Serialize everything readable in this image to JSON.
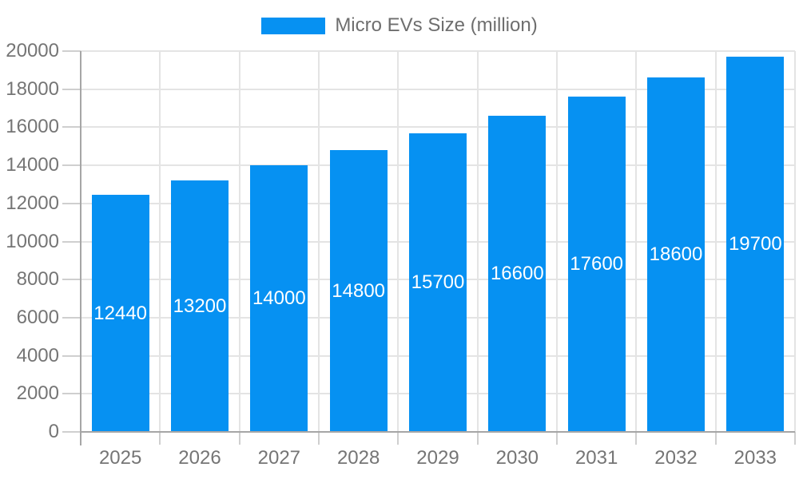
{
  "legend": {
    "label": "Micro EVs Size (million)"
  },
  "colors": {
    "bar": "#0691f2",
    "grid": "#e4e4e4",
    "axis": "#a6a6a6",
    "tick": "#cfcfcf",
    "axis_text": "#757575",
    "legend_text": "#6e6e6e",
    "bar_label_text": "#ffffff"
  },
  "chart_data": {
    "type": "bar",
    "title": "Micro EVs Size (million)",
    "categories": [
      "2025",
      "2026",
      "2027",
      "2028",
      "2029",
      "2030",
      "2031",
      "2032",
      "2033"
    ],
    "series": [
      {
        "name": "Micro EVs Size (million)",
        "values": [
          12440,
          13200,
          14000,
          14800,
          15700,
          16600,
          17600,
          18600,
          19700
        ]
      }
    ],
    "data_labels": [
      "12440",
      "13200",
      "14000",
      "14800",
      "15700",
      "16600",
      "17600",
      "18600",
      "19700"
    ],
    "xlabel": "",
    "ylabel": "",
    "ylim": [
      0,
      20000
    ],
    "ytick_step": 2000,
    "ytick_labels": [
      "0",
      "2000",
      "4000",
      "6000",
      "8000",
      "10000",
      "12000",
      "14000",
      "16000",
      "18000",
      "20000"
    ],
    "grid": true,
    "legend_position": "top-center",
    "data_label_position": "inside-center"
  }
}
